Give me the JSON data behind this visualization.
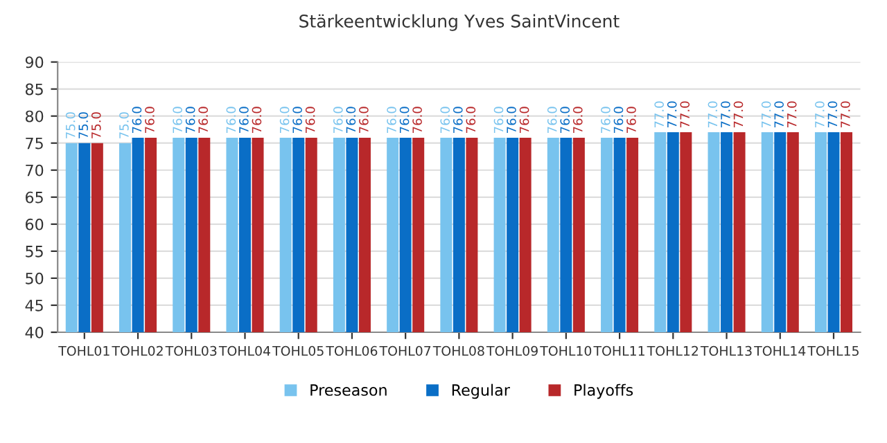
{
  "chart_data": {
    "type": "bar",
    "title": "Stärkeentwicklung Yves SaintVincent",
    "categories": [
      "TOHL01",
      "TOHL02",
      "TOHL03",
      "TOHL04",
      "TOHL05",
      "TOHL06",
      "TOHL07",
      "TOHL08",
      "TOHL09",
      "TOHL10",
      "TOHL11",
      "TOHL12",
      "TOHL13",
      "TOHL14",
      "TOHL15"
    ],
    "series": [
      {
        "name": "Preseason",
        "color": "#78c3ee",
        "values": [
          75,
          75,
          76,
          76,
          76,
          76,
          76,
          76,
          76,
          76,
          76,
          77,
          77,
          77,
          77
        ],
        "value_labels": [
          "75.0",
          "75.0",
          "76.0",
          "76.0",
          "76.0",
          "76.0",
          "76.0",
          "76.0",
          "76.0",
          "76.0",
          "76.0",
          "77.0",
          "77.0",
          "77.0",
          "77.0"
        ]
      },
      {
        "name": "Regular",
        "color": "#0a6ec6",
        "values": [
          75,
          76,
          76,
          76,
          76,
          76,
          76,
          76,
          76,
          76,
          76,
          77,
          77,
          77,
          77
        ],
        "value_labels": [
          "75.0",
          "76.0",
          "76.0",
          "76.0",
          "76.0",
          "76.0",
          "76.0",
          "76.0",
          "76.0",
          "76.0",
          "76.0",
          "77.0",
          "77.0",
          "77.0",
          "77.0"
        ]
      },
      {
        "name": "Playoffs",
        "color": "#b8282a",
        "values": [
          75,
          76,
          76,
          76,
          76,
          76,
          76,
          76,
          76,
          76,
          76,
          77,
          77,
          77,
          77
        ],
        "value_labels": [
          "75.0",
          "76.0",
          "76.0",
          "76.0",
          "76.0",
          "76.0",
          "76.0",
          "76.0",
          "76.0",
          "76.0",
          "76.0",
          "77.0",
          "77.0",
          "77.0",
          "77.0"
        ]
      }
    ],
    "ylim": [
      40,
      90
    ],
    "yticks": [
      40,
      45,
      50,
      55,
      60,
      65,
      70,
      75,
      80,
      85,
      90
    ],
    "grid": "y",
    "legend": "bottom"
  }
}
